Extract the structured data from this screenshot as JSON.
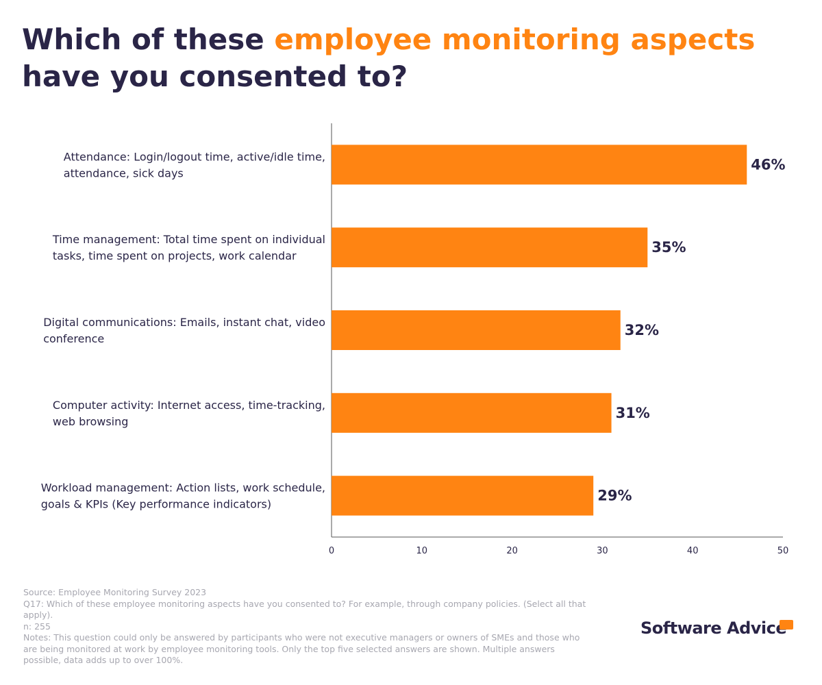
{
  "chart_data": {
    "type": "barh",
    "title_parts": [
      "Which of these ",
      "employee monitoring aspects",
      "have you consented to?"
    ],
    "categories": [
      [
        "Attendance: Login/logout time, active/idle time,",
        "attendance, sick days"
      ],
      [
        "Time management: Total time spent on individual",
        "tasks, time spent on projects, work calendar"
      ],
      [
        "Digital communications: Emails, instant chat, video",
        "conference"
      ],
      [
        "Computer activity: Internet access, time-tracking,",
        "web browsing"
      ],
      [
        "Workload management: Action lists, work schedule,",
        "goals & KPIs (Key performance indicators)"
      ]
    ],
    "values": [
      46,
      35,
      32,
      31,
      29
    ],
    "value_labels": [
      "46%",
      "35%",
      "32%",
      "31%",
      "29%"
    ],
    "color": "#ff8412",
    "xlim": [
      0,
      50
    ],
    "xticks": [
      0,
      10,
      20,
      30,
      40,
      50
    ]
  },
  "footer": {
    "source": "Source: Employee Monitoring Survey 2023",
    "question": "Q17: Which of these employee monitoring aspects have you consented to? For example, through company policies. (Select all that apply).",
    "n": "n: 255",
    "notes": "Notes: This question could only be answered by participants who were not executive managers or owners of SMEs and those who are being monitored at work by employee monitoring tools. Only the top five selected answers are shown. Multiple answers possible, data adds up to over 100%.",
    "logo": "Software Advice"
  }
}
